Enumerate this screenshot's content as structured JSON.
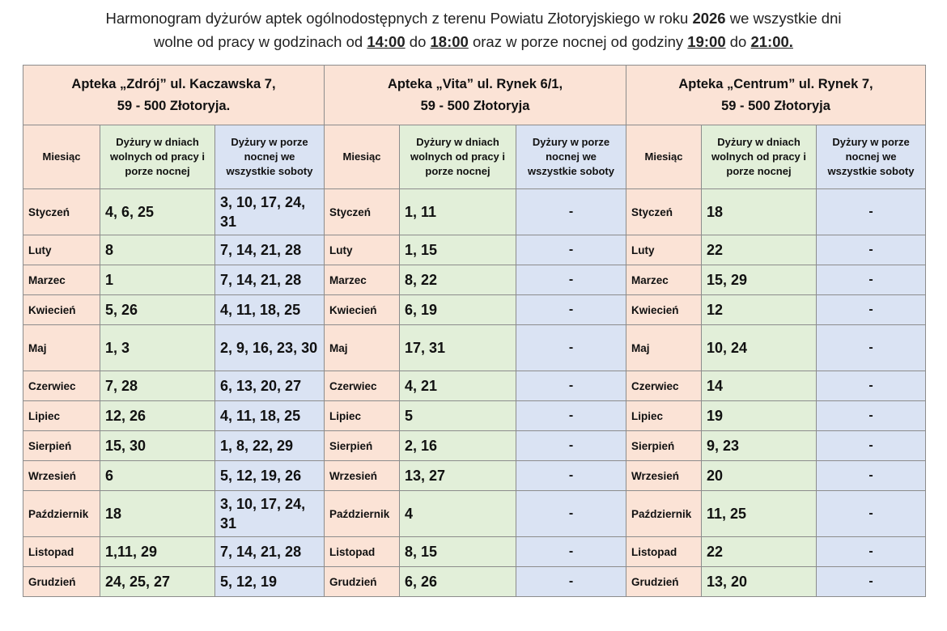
{
  "title": {
    "line1_a": "Harmonogram dyżurów aptek ogólnodostępnych z terenu Powiatu Złotoryjskiego w roku ",
    "year": "2026",
    "line1_b": " we wszystkie dni",
    "line2_a": "wolne od pracy w godzinach od ",
    "t1": "14:00",
    "line2_b": " do ",
    "t2": "18:00",
    "line2_c": " oraz w porze nocnej od godziny ",
    "t3": "19:00",
    "line2_d": " do ",
    "t4": "21:00."
  },
  "colors": {
    "header": "#fbe3d6",
    "holidays": "#e2efd9",
    "saturdays": "#dae3f3"
  },
  "pharmacies": [
    {
      "name": "Apteka „Zdrój” ul. Kaczawska 7,",
      "address": "59 - 500 Złotoryja."
    },
    {
      "name": "Apteka „Vita” ul. Rynek 6/1,",
      "address": "59 - 500 Złotoryja"
    },
    {
      "name": "Apteka „Centrum” ul. Rynek 7,",
      "address": "59 - 500 Złotoryja"
    }
  ],
  "columns": {
    "month": "Miesiąc",
    "holidays": "Dyżury w dniach wolnych od pracy i porze nocnej",
    "saturdays": "Dyżury w porze nocnej we wszystkie soboty"
  },
  "rows": [
    {
      "month": "Styczeń",
      "cells": [
        "4, 6, 25",
        "3, 10, 17, 24, 31",
        "1, 11",
        "-",
        "18",
        "-"
      ]
    },
    {
      "month": "Luty",
      "cells": [
        "8",
        "7, 14, 21, 28",
        "1, 15",
        "-",
        "22",
        "-"
      ]
    },
    {
      "month": "Marzec",
      "cells": [
        "1",
        "7, 14, 21, 28",
        "8, 22",
        "-",
        "15, 29",
        "-"
      ]
    },
    {
      "month": "Kwiecień",
      "cells": [
        "5, 26",
        "4, 11, 18, 25",
        "6, 19",
        "-",
        "12",
        "-"
      ]
    },
    {
      "month": "Maj",
      "cells": [
        "1, 3",
        "2, 9, 16, 23, 30",
        "17, 31",
        "-",
        "10, 24",
        "-"
      ]
    },
    {
      "month": "Czerwiec",
      "cells": [
        "7, 28",
        "6, 13, 20, 27",
        "4, 21",
        "-",
        "14",
        "-"
      ]
    },
    {
      "month": "Lipiec",
      "cells": [
        "12, 26",
        "4, 11, 18, 25",
        "5",
        "-",
        "19",
        "-"
      ]
    },
    {
      "month": "Sierpień",
      "cells": [
        "15, 30",
        "1, 8, 22, 29",
        "2, 16",
        "-",
        "9, 23",
        "-"
      ]
    },
    {
      "month": "Wrzesień",
      "cells": [
        "6",
        "5, 12, 19, 26",
        "13, 27",
        "-",
        "20",
        "-"
      ]
    },
    {
      "month": "Październik",
      "cells": [
        "18",
        "3, 10, 17, 24, 31",
        "4",
        "-",
        "11, 25",
        "-"
      ]
    },
    {
      "month": "Listopad",
      "cells": [
        "1,11, 29",
        "7, 14, 21, 28",
        "8, 15",
        "-",
        "22",
        "-"
      ]
    },
    {
      "month": "Grudzień",
      "cells": [
        "24, 25, 27",
        "5, 12, 19",
        "6, 26",
        "-",
        "13, 20",
        "-"
      ]
    }
  ]
}
